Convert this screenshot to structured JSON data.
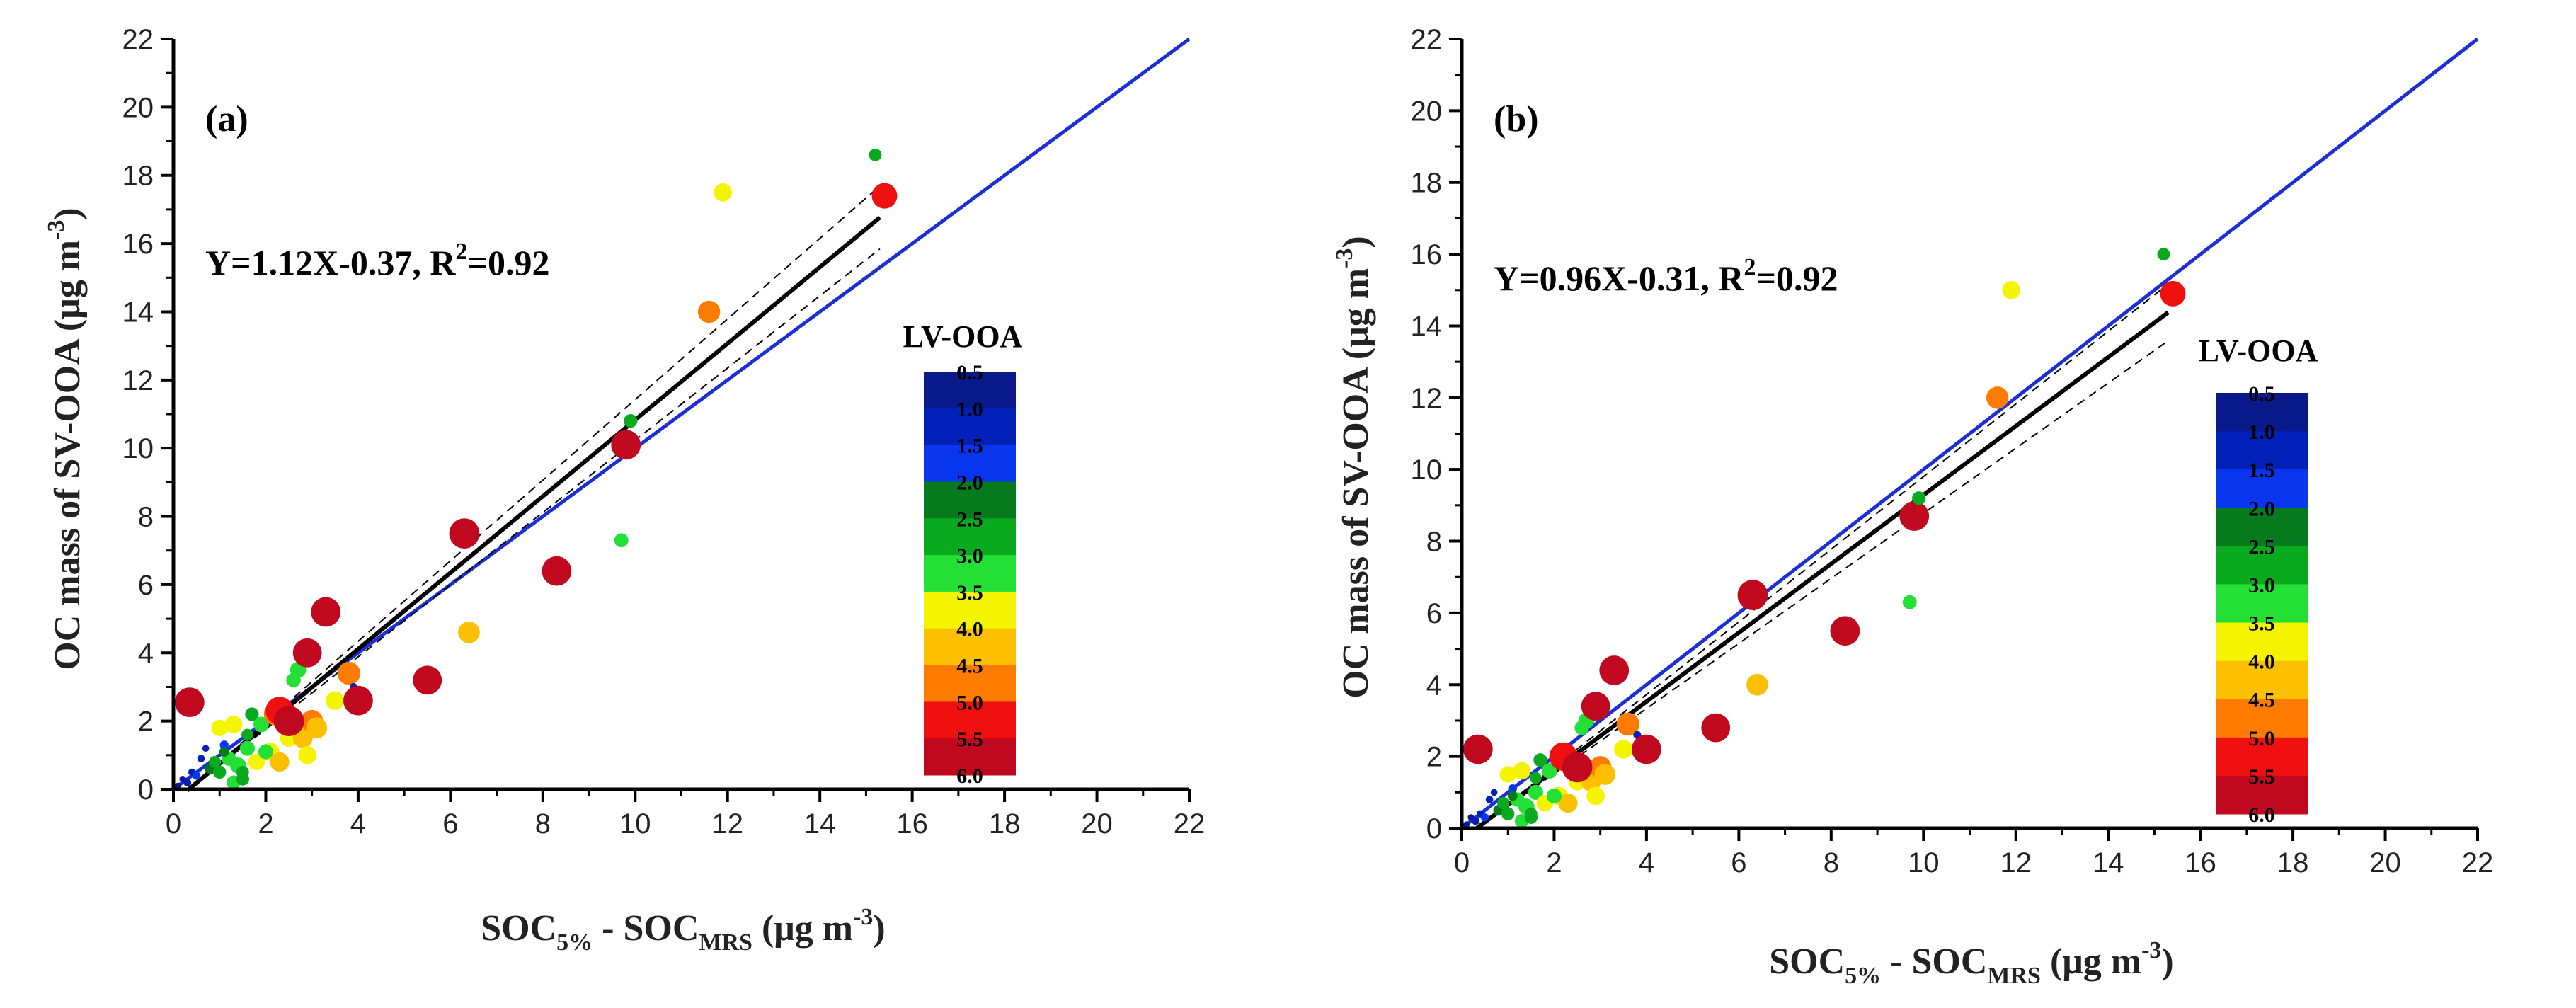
{
  "colors": {
    "one_to_one": "#1a2fd6",
    "fit": "#000000",
    "scale": [
      "#0a1a8a",
      "#0020b8",
      "#0a36f0",
      "#087a1e",
      "#0aaa1e",
      "#24e036",
      "#f4f400",
      "#fdc000",
      "#fd7c00",
      "#f01010",
      "#c0081e"
    ]
  },
  "chart_data": [
    {
      "id": "a",
      "type": "scatter",
      "panel_label": "(a)",
      "equation": "Y=1.12X-0.37, R",
      "equation_sup": "2",
      "equation_tail": "=0.92",
      "xlabel": {
        "main": "SOC",
        "sub1": "5%",
        "mid": " - SOC",
        "sub2": "MRS",
        "tail": " (μg m",
        "sup": "-3",
        "end": ")"
      },
      "ylabel": {
        "main": "OC mass of SV-OOA (μg m",
        "sup": "-3",
        "end": ")"
      },
      "xlim": [
        0,
        22
      ],
      "ylim": [
        0,
        22
      ],
      "xticks": [
        "0",
        "2",
        "4",
        "6",
        "8",
        "10",
        "12",
        "14",
        "16",
        "18",
        "20",
        "22"
      ],
      "yticks": [
        "0",
        "2",
        "4",
        "6",
        "8",
        "10",
        "12",
        "14",
        "16",
        "18",
        "20",
        "22"
      ],
      "fit": {
        "slope": 1.12,
        "intercept": -0.37,
        "x_range": [
          0.3,
          15.3
        ],
        "ci_halfwidth_frac": 0.055
      },
      "one_to_one": true,
      "legend": {
        "title": "LV-OOA",
        "labels": [
          "0.5",
          "1.0",
          "1.5",
          "2.0",
          "2.5",
          "3.0",
          "3.5",
          "4.0",
          "4.5",
          "5.0",
          "5.5",
          "6.0"
        ]
      },
      "points": [
        [
          0.1,
          0.1,
          0.6
        ],
        [
          0.2,
          0.3,
          0.7
        ],
        [
          0.3,
          0.2,
          1.2
        ],
        [
          0.4,
          0.5,
          1.0
        ],
        [
          0.5,
          0.4,
          1.3
        ],
        [
          0.6,
          0.9,
          1.1
        ],
        [
          0.7,
          1.2,
          0.8
        ],
        [
          0.8,
          0.6,
          2.1
        ],
        [
          0.9,
          0.8,
          2.4
        ],
        [
          1.0,
          0.5,
          2.6
        ],
        [
          1.1,
          1.3,
          1.5
        ],
        [
          1.2,
          0.9,
          2.9
        ],
        [
          1.3,
          0.2,
          2.8
        ],
        [
          1.4,
          0.7,
          3.2
        ],
        [
          1.5,
          0.3,
          2.6
        ],
        [
          1.6,
          1.2,
          3.0
        ],
        [
          1.7,
          2.2,
          2.7
        ],
        [
          1.8,
          0.8,
          3.3
        ],
        [
          1.9,
          1.9,
          3.1
        ],
        [
          2.1,
          1.1,
          3.6
        ],
        [
          2.3,
          0.8,
          3.8
        ],
        [
          2.5,
          1.5,
          3.5
        ],
        [
          2.6,
          3.2,
          2.9
        ],
        [
          2.7,
          3.5,
          3.2
        ],
        [
          2.8,
          1.5,
          3.9
        ],
        [
          2.9,
          1.0,
          3.6
        ],
        [
          3.0,
          2.0,
          4.3
        ],
        [
          3.1,
          1.8,
          4.1
        ],
        [
          3.5,
          2.6,
          3.7
        ],
        [
          3.8,
          3.4,
          4.4
        ],
        [
          1.0,
          1.8,
          3.3
        ],
        [
          1.3,
          1.9,
          3.5
        ],
        [
          2.2,
          2.2,
          4.3
        ],
        [
          2.0,
          1.1,
          3.0
        ],
        [
          1.5,
          0.5,
          2.5
        ],
        [
          1.1,
          1.1,
          1.8
        ],
        [
          1.6,
          1.6,
          2.3
        ],
        [
          2.4,
          2.4,
          2.6
        ],
        [
          3.9,
          3.0,
          1.2
        ],
        [
          0.35,
          2.55,
          5.4
        ],
        [
          2.3,
          2.3,
          5.2
        ],
        [
          2.5,
          2.0,
          5.5
        ],
        [
          2.9,
          4.0,
          5.3
        ],
        [
          3.3,
          5.2,
          5.4
        ],
        [
          4.0,
          2.6,
          5.4
        ],
        [
          5.5,
          3.2,
          5.3
        ],
        [
          6.3,
          7.5,
          5.5
        ],
        [
          8.3,
          6.4,
          5.4
        ],
        [
          9.8,
          10.1,
          5.4
        ],
        [
          6.4,
          4.6,
          4.2
        ],
        [
          9.7,
          7.3,
          2.8
        ],
        [
          9.9,
          10.8,
          2.7
        ],
        [
          11.6,
          14.0,
          4.3
        ],
        [
          11.9,
          17.5,
          3.6
        ],
        [
          15.2,
          18.6,
          2.5
        ],
        [
          15.4,
          17.4,
          4.8
        ]
      ]
    },
    {
      "id": "b",
      "type": "scatter",
      "panel_label": "(b)",
      "equation": "Y=0.96X-0.31, R",
      "equation_sup": "2",
      "equation_tail": "=0.92",
      "xlabel": {
        "main": "SOC",
        "sub1": "5%",
        "mid": " - SOC",
        "sub2": "MRS",
        "tail": " (μg m",
        "sup": "-3",
        "end": ")"
      },
      "ylabel": {
        "main": "OC mass of SV-OOA (μg m",
        "sup": "-3",
        "end": ")"
      },
      "xlim": [
        0,
        22
      ],
      "ylim": [
        0,
        22
      ],
      "xticks": [
        "0",
        "2",
        "4",
        "6",
        "8",
        "10",
        "12",
        "14",
        "16",
        "18",
        "20",
        "22"
      ],
      "yticks": [
        "0",
        "2",
        "4",
        "6",
        "8",
        "10",
        "12",
        "14",
        "16",
        "18",
        "20",
        "22"
      ],
      "fit": {
        "slope": 0.96,
        "intercept": -0.31,
        "x_range": [
          0.3,
          15.3
        ],
        "ci_halfwidth_frac": 0.055
      },
      "one_to_one": true,
      "legend": {
        "title": "LV-OOA",
        "labels": [
          "0.5",
          "1.0",
          "1.5",
          "2.0",
          "2.5",
          "3.0",
          "3.5",
          "4.0",
          "4.5",
          "5.0",
          "5.5",
          "6.0"
        ]
      },
      "points": [
        [
          0.1,
          0.1,
          0.6
        ],
        [
          0.2,
          0.3,
          0.7
        ],
        [
          0.3,
          0.2,
          1.2
        ],
        [
          0.4,
          0.4,
          1.0
        ],
        [
          0.5,
          0.3,
          1.3
        ],
        [
          0.6,
          0.8,
          1.1
        ],
        [
          0.7,
          1.0,
          0.8
        ],
        [
          0.8,
          0.5,
          2.1
        ],
        [
          0.9,
          0.7,
          2.4
        ],
        [
          1.0,
          0.4,
          2.6
        ],
        [
          1.1,
          1.1,
          1.5
        ],
        [
          1.2,
          0.8,
          2.9
        ],
        [
          1.3,
          0.2,
          2.8
        ],
        [
          1.4,
          0.6,
          3.2
        ],
        [
          1.5,
          0.3,
          2.6
        ],
        [
          1.6,
          1.0,
          3.0
        ],
        [
          1.7,
          1.9,
          2.7
        ],
        [
          1.8,
          0.7,
          3.3
        ],
        [
          1.9,
          1.6,
          3.1
        ],
        [
          2.1,
          0.9,
          3.6
        ],
        [
          2.3,
          0.7,
          3.8
        ],
        [
          2.5,
          1.3,
          3.5
        ],
        [
          2.6,
          2.8,
          2.9
        ],
        [
          2.7,
          3.0,
          3.2
        ],
        [
          2.8,
          1.3,
          3.9
        ],
        [
          2.9,
          0.9,
          3.6
        ],
        [
          3.0,
          1.7,
          4.3
        ],
        [
          3.1,
          1.5,
          4.1
        ],
        [
          3.5,
          2.2,
          3.7
        ],
        [
          3.6,
          2.9,
          4.4
        ],
        [
          1.0,
          1.5,
          3.3
        ],
        [
          1.3,
          1.6,
          3.5
        ],
        [
          2.2,
          1.9,
          4.3
        ],
        [
          2.0,
          0.9,
          3.0
        ],
        [
          1.5,
          0.4,
          2.5
        ],
        [
          1.1,
          0.9,
          1.8
        ],
        [
          1.6,
          1.4,
          2.3
        ],
        [
          2.4,
          2.0,
          2.6
        ],
        [
          3.8,
          2.6,
          1.2
        ],
        [
          0.35,
          2.2,
          5.4
        ],
        [
          2.2,
          2.0,
          5.2
        ],
        [
          2.5,
          1.7,
          5.5
        ],
        [
          2.9,
          3.4,
          5.3
        ],
        [
          3.3,
          4.4,
          5.4
        ],
        [
          4.0,
          2.2,
          5.4
        ],
        [
          5.5,
          2.8,
          5.3
        ],
        [
          6.3,
          6.5,
          5.5
        ],
        [
          8.3,
          5.5,
          5.4
        ],
        [
          9.8,
          8.7,
          5.4
        ],
        [
          6.4,
          4.0,
          4.2
        ],
        [
          9.7,
          6.3,
          2.8
        ],
        [
          9.9,
          9.2,
          2.7
        ],
        [
          11.6,
          12.0,
          4.3
        ],
        [
          11.9,
          15.0,
          3.6
        ],
        [
          15.2,
          16.0,
          2.5
        ],
        [
          15.4,
          14.9,
          4.8
        ]
      ]
    }
  ]
}
